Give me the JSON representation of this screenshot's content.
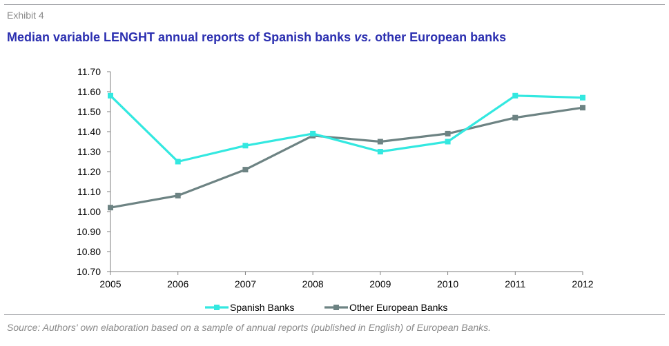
{
  "header": {
    "exhibit_label": "Exhibit 4",
    "title_part1": "Median variable LENGHT annual reports of Spanish banks ",
    "title_vs": "vs.",
    "title_part2": " other European banks"
  },
  "chart_data": {
    "type": "line",
    "x": [
      "2005",
      "2006",
      "2007",
      "2008",
      "2009",
      "2010",
      "2011",
      "2012"
    ],
    "ylim": [
      10.7,
      11.7
    ],
    "yticks": [
      "11.70",
      "11.60",
      "11.50",
      "11.40",
      "11.30",
      "11.20",
      "11.10",
      "11.00",
      "10.90",
      "10.80",
      "10.70"
    ],
    "grid": false,
    "legend_position": "bottom",
    "series": [
      {
        "name": "Spanish Banks",
        "color": "#33e8e0",
        "values": [
          11.58,
          11.25,
          11.33,
          11.39,
          11.3,
          11.35,
          11.58,
          11.57
        ]
      },
      {
        "name": "Other European Banks",
        "color": "#6d8383",
        "values": [
          11.02,
          11.08,
          11.21,
          11.38,
          11.35,
          11.39,
          11.47,
          11.52
        ]
      }
    ]
  },
  "footer": {
    "source": "Source: Authors' own elaboration based on a sample of annual reports (published in English) of European Banks."
  }
}
